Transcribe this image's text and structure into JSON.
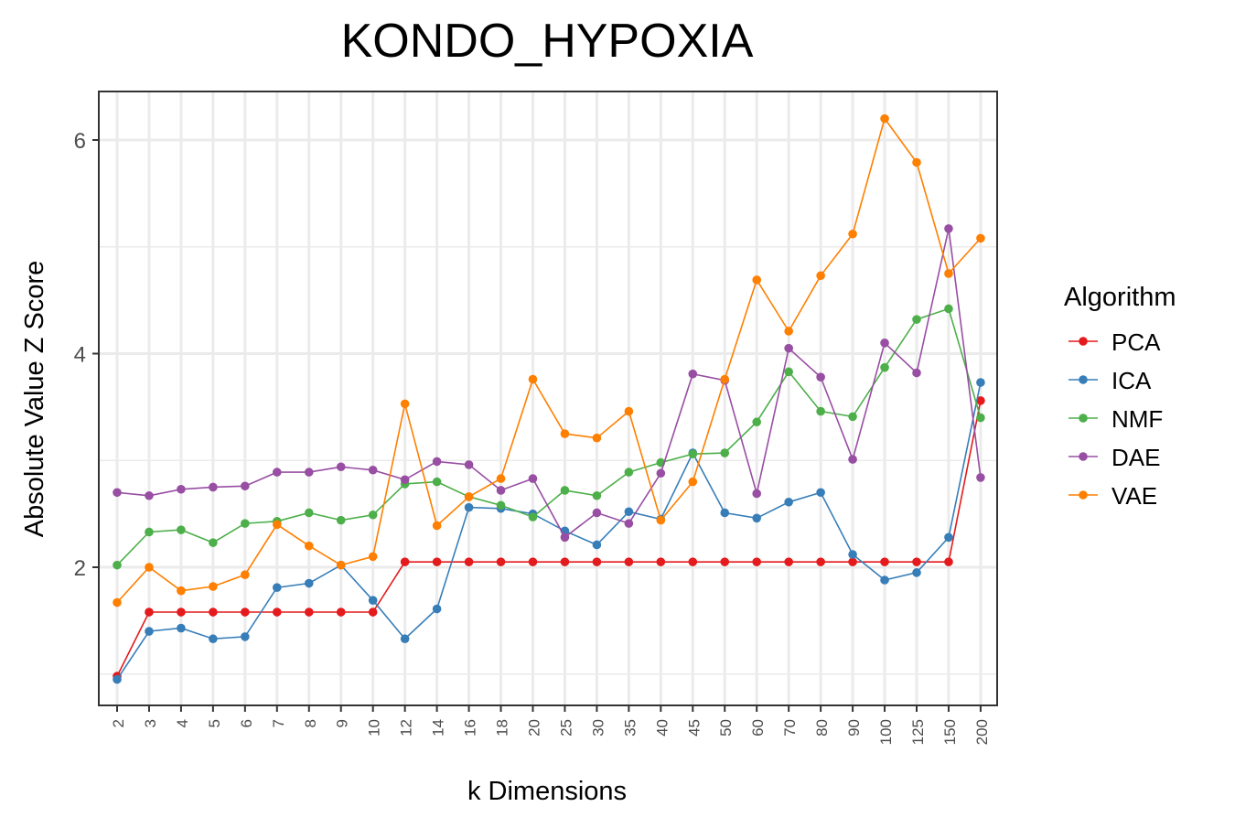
{
  "chart_data": {
    "type": "line",
    "title": "KONDO_HYPOXIA",
    "xlabel": "k Dimensions",
    "ylabel": "Absolute Value Z Score",
    "categories": [
      "2",
      "3",
      "4",
      "5",
      "6",
      "7",
      "8",
      "9",
      "10",
      "12",
      "14",
      "16",
      "18",
      "20",
      "25",
      "30",
      "35",
      "40",
      "45",
      "50",
      "60",
      "70",
      "80",
      "90",
      "100",
      "125",
      "150",
      "200"
    ],
    "ylim": [
      0.75,
      6.5
    ],
    "yticks": [
      2,
      4,
      6
    ],
    "grid": true,
    "legend": {
      "title": "Algorithm",
      "position": "right"
    },
    "series": [
      {
        "name": "PCA",
        "color": "#e41a1c",
        "values": [
          0.98,
          1.58,
          1.58,
          1.58,
          1.58,
          1.58,
          1.58,
          1.58,
          1.58,
          2.05,
          2.05,
          2.05,
          2.05,
          2.05,
          2.05,
          2.05,
          2.05,
          2.05,
          2.05,
          2.05,
          2.05,
          2.05,
          2.05,
          2.05,
          2.05,
          2.05,
          2.05,
          3.56
        ]
      },
      {
        "name": "ICA",
        "color": "#377eb8",
        "values": [
          0.95,
          1.4,
          1.43,
          1.33,
          1.35,
          1.81,
          1.85,
          2.02,
          1.69,
          1.33,
          1.61,
          2.56,
          2.55,
          2.5,
          2.34,
          2.21,
          2.52,
          2.45,
          3.07,
          2.51,
          2.46,
          2.61,
          2.7,
          2.12,
          1.88,
          1.95,
          2.28,
          3.73
        ]
      },
      {
        "name": "NMF",
        "color": "#4daf4a",
        "values": [
          2.02,
          2.33,
          2.35,
          2.23,
          2.41,
          2.43,
          2.51,
          2.44,
          2.49,
          2.78,
          2.8,
          2.66,
          2.58,
          2.47,
          2.72,
          2.67,
          2.89,
          2.98,
          3.06,
          3.07,
          3.36,
          3.83,
          3.46,
          3.41,
          3.87,
          4.32,
          4.42,
          3.4
        ]
      },
      {
        "name": "DAE",
        "color": "#984ea3",
        "values": [
          2.7,
          2.67,
          2.73,
          2.75,
          2.76,
          2.89,
          2.89,
          2.94,
          2.91,
          2.82,
          2.99,
          2.96,
          2.72,
          2.83,
          2.28,
          2.51,
          2.41,
          2.88,
          3.81,
          3.75,
          2.69,
          4.05,
          3.78,
          3.01,
          4.1,
          3.82,
          5.17,
          2.84
        ]
      },
      {
        "name": "VAE",
        "color": "#ff7f00",
        "values": [
          1.67,
          2.0,
          1.78,
          1.82,
          1.93,
          2.4,
          2.2,
          2.02,
          2.1,
          3.53,
          2.39,
          2.66,
          2.83,
          3.76,
          3.25,
          3.21,
          3.46,
          2.44,
          2.8,
          3.76,
          4.69,
          4.21,
          4.73,
          5.12,
          6.2,
          5.79,
          4.75,
          5.08
        ]
      }
    ]
  }
}
